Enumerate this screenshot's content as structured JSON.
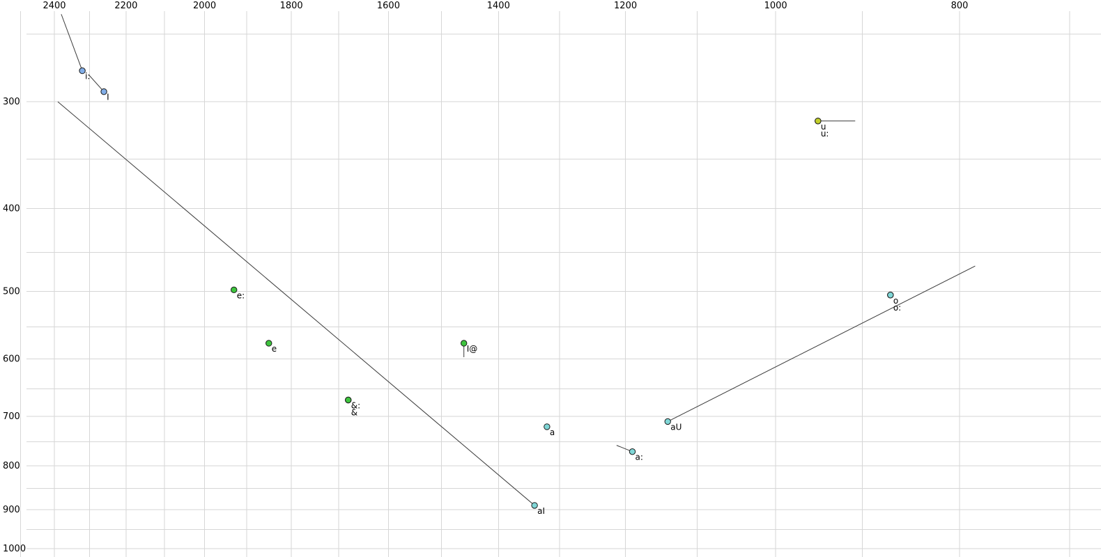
{
  "page": {
    "background": "#ffffff"
  },
  "chart_data": {
    "type": "scatter",
    "title": "",
    "description": "Vowel formant chart: F2 (Hz) on reversed log x-axis (labels along top), F1 (Hz) on reversed log y-axis (labels along left); vowel targets plotted as colored dots with diphthong trajectory lines",
    "x_axis": {
      "ticks": [
        2400,
        2200,
        2000,
        1800,
        1600,
        1400,
        1200,
        1000,
        800
      ],
      "scale": "log",
      "reversed": true,
      "grid_from": 2500,
      "grid_to": 700,
      "grid_step": 100
    },
    "y_axis": {
      "ticks": [
        300,
        400,
        500,
        600,
        700,
        800,
        900,
        1000
      ],
      "scale": "log",
      "reversed": true,
      "grid_from": 250,
      "grid_to": 1000,
      "grid_step": 50
    },
    "grid": true,
    "legend": false,
    "points": [
      {
        "label": "i:",
        "f2": 2320,
        "f1": 276,
        "color": "blue"
      },
      {
        "label": "I",
        "f2": 2260,
        "f1": 292,
        "color": "blue"
      },
      {
        "label": "e:",
        "f2": 1930,
        "f1": 498,
        "color": "green"
      },
      {
        "label": "e",
        "f2": 1850,
        "f1": 575,
        "color": "green"
      },
      {
        "label": "&:",
        "f2": 1680,
        "f1": 670,
        "color": "green"
      },
      {
        "label": "&",
        "f2": 1680,
        "f1": 670,
        "color": "green",
        "label_offset": [
          4,
          22
        ]
      },
      {
        "label": "I@",
        "f2": 1460,
        "f1": 575,
        "color": "green"
      },
      {
        "label": "a",
        "f2": 1320,
        "f1": 720,
        "color": "cyan"
      },
      {
        "label": "a:",
        "f2": 1190,
        "f1": 770,
        "color": "cyan"
      },
      {
        "label": "aI",
        "f2": 1340,
        "f1": 890,
        "color": "cyan"
      },
      {
        "label": "aU",
        "f2": 1140,
        "f1": 710,
        "color": "cyan"
      },
      {
        "label": "o",
        "f2": 870,
        "f1": 505,
        "color": "cyan"
      },
      {
        "label": "o:",
        "f2": 870,
        "f1": 505,
        "color": "cyan",
        "label_offset": [
          4,
          22
        ]
      },
      {
        "label": "u",
        "f2": 950,
        "f1": 316,
        "color": "olive"
      },
      {
        "label": "u:",
        "f2": 950,
        "f1": 316,
        "color": "olive",
        "label_offset": [
          4,
          22
        ]
      }
    ],
    "trajectories": [
      {
        "vowel": "i:",
        "from": [
          2320,
          276
        ],
        "to": [
          2380,
          237
        ]
      },
      {
        "vowel": "I",
        "from": [
          2260,
          292
        ],
        "to": [
          2302,
          279
        ]
      },
      {
        "vowel": "I@",
        "from": [
          1460,
          575
        ],
        "to": [
          1460,
          597
        ]
      },
      {
        "vowel": "a:",
        "from": [
          1190,
          770
        ],
        "to": [
          1213,
          757
        ]
      },
      {
        "vowel": "aI",
        "from": [
          1340,
          890
        ],
        "to": [
          2390,
          300
        ]
      },
      {
        "vowel": "aU",
        "from": [
          1140,
          710
        ],
        "to": [
          785,
          467
        ]
      },
      {
        "vowel": "u:",
        "from": [
          950,
          316
        ],
        "to": [
          908,
          316
        ]
      }
    ],
    "style": {
      "colors": {
        "blue": "#82aee8",
        "green": "#3ec43e",
        "cyan": "#7fd6d6",
        "olive": "#c2cf2a"
      },
      "grid_color": "#d6d6d6",
      "trajectory_color": "#3a3a3a",
      "point_outline": "#1a1a1a"
    }
  }
}
